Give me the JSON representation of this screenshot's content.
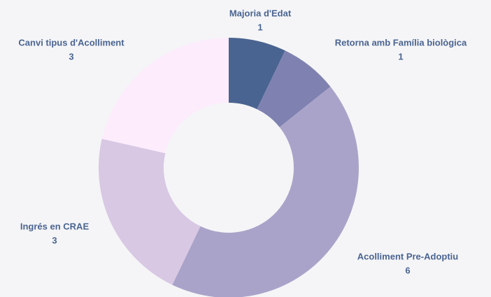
{
  "chart_data": {
    "type": "pie",
    "categories": [
      "Majoria d'Edat",
      "Retorna amb Família biològica",
      "Acolliment Pre-Adoptiu",
      "Ingrés en CRAE",
      "Canvi tipus d'Acolliment"
    ],
    "values": [
      1,
      1,
      6,
      3,
      3
    ],
    "colors": [
      "#4a6491",
      "#7f82b0",
      "#aaa3c9",
      "#d8c8e3",
      "#fcecfc"
    ]
  }
}
